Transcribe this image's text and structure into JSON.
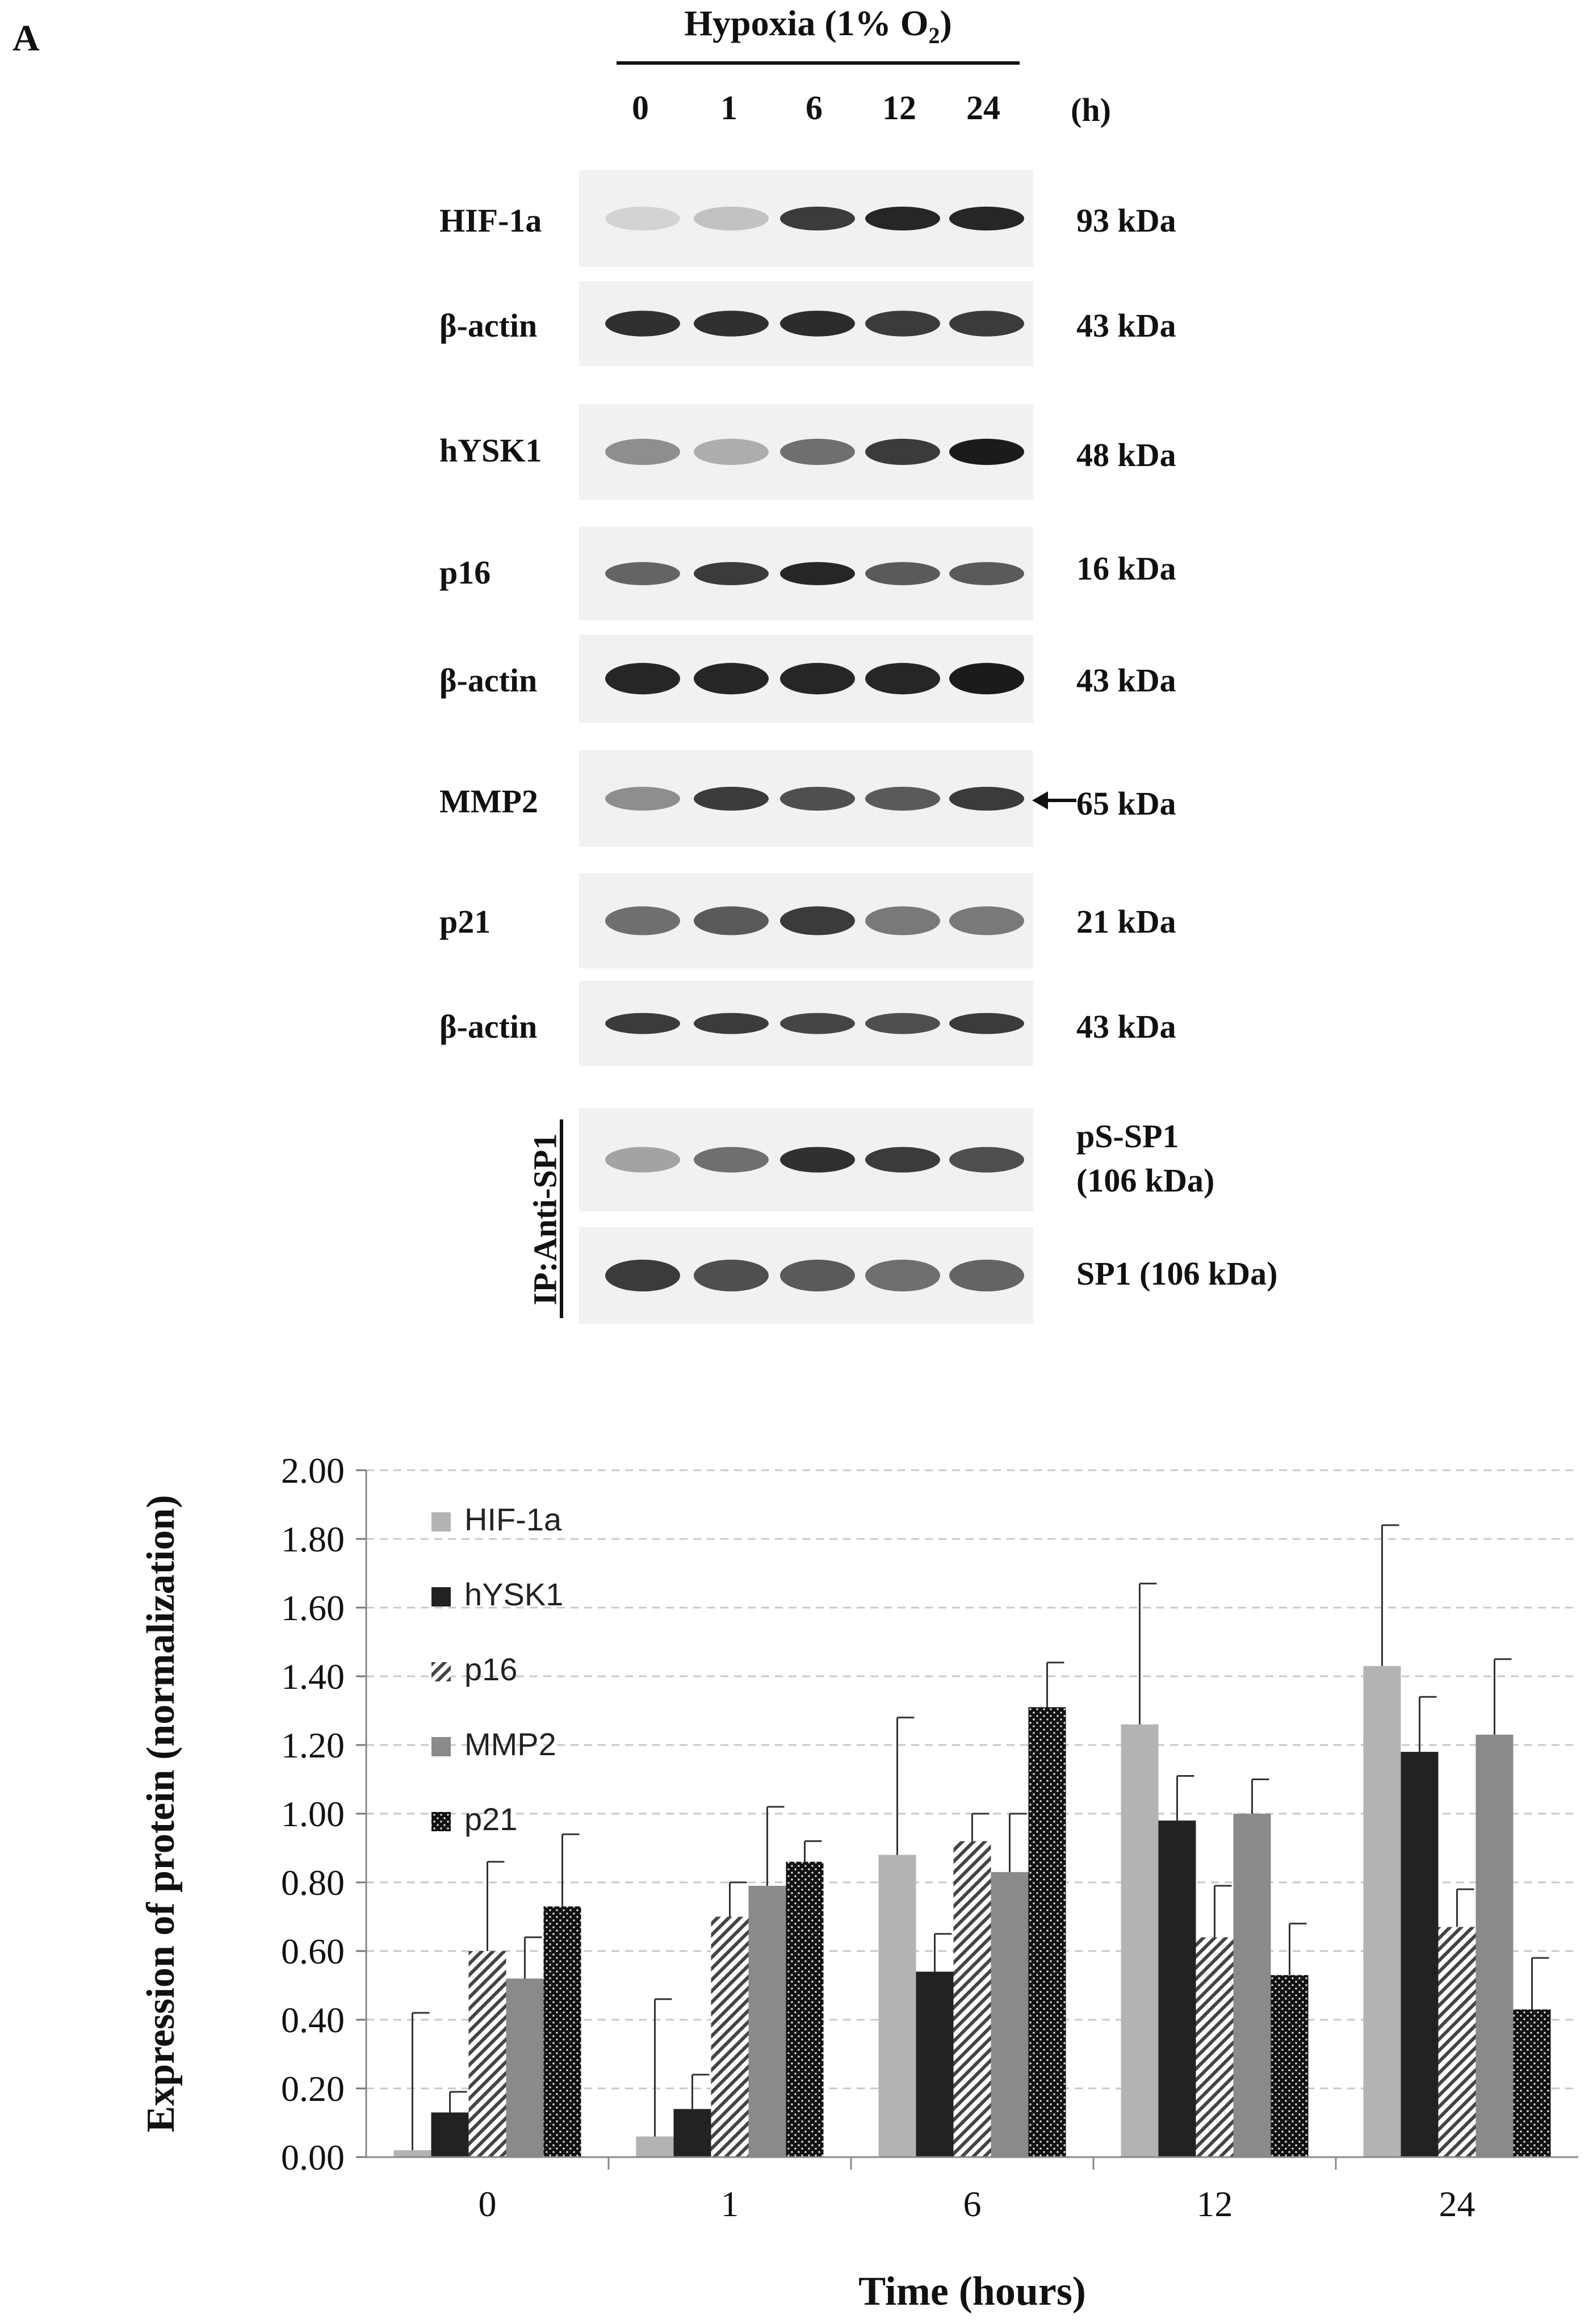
{
  "panel_letter": "A",
  "blot": {
    "condition_label": "Hypoxia (1% O",
    "condition_sub": "2",
    "condition_close": ")",
    "time_unit": "(h)",
    "lanes": [
      "0",
      "1",
      "6",
      "12",
      "24"
    ],
    "rows": [
      {
        "label": "HIF-1a",
        "size": "93 kDa",
        "intensity": [
          0.12,
          0.2,
          0.85,
          0.95,
          0.95
        ],
        "thickness": 0.45
      },
      {
        "label": "β-actin",
        "size": "43 kDa",
        "intensity": [
          0.9,
          0.9,
          0.92,
          0.85,
          0.85
        ],
        "thickness": 0.55
      },
      {
        "label": "hYSK1",
        "size": "48 kDa",
        "intensity": [
          0.45,
          0.3,
          0.6,
          0.85,
          1.0
        ],
        "thickness": 0.5
      },
      {
        "label": "p16",
        "size": "16 kDa",
        "intensity": [
          0.65,
          0.85,
          0.95,
          0.7,
          0.7
        ],
        "thickness": 0.45
      },
      {
        "label": "β-actin",
        "size": "43 kDa",
        "intensity": [
          0.95,
          0.95,
          0.95,
          0.95,
          1.0
        ],
        "thickness": 0.65
      },
      {
        "label": "MMP2",
        "size": "65 kDa",
        "intensity": [
          0.45,
          0.85,
          0.75,
          0.7,
          0.85
        ],
        "thickness": 0.45
      },
      {
        "label": "p21",
        "size": "21 kDa",
        "intensity": [
          0.6,
          0.7,
          0.85,
          0.55,
          0.55
        ],
        "thickness": 0.55
      },
      {
        "label": "β-actin",
        "size": "43 kDa",
        "intensity": [
          0.85,
          0.85,
          0.8,
          0.75,
          0.85
        ],
        "thickness": 0.45
      },
      {
        "label": "",
        "size": "pS-SP1",
        "size_line2": "(106 kDa)",
        "intensity": [
          0.35,
          0.6,
          0.9,
          0.85,
          0.75
        ],
        "thickness": 0.45
      },
      {
        "label": "",
        "size": "SP1 (106 kDa)",
        "intensity": [
          0.85,
          0.75,
          0.7,
          0.6,
          0.65
        ],
        "thickness": 0.6
      }
    ],
    "ip_label": "IP:Anti-SP1"
  },
  "chart_data": {
    "type": "bar",
    "categories": [
      "0",
      "1",
      "6",
      "12",
      "24"
    ],
    "xlabel": "Time (hours)",
    "ylabel": "Expression of protein (normalization)",
    "ylim": [
      0,
      2.0
    ],
    "yticks": [
      "0.00",
      "0.20",
      "0.40",
      "0.60",
      "0.80",
      "1.00",
      "1.20",
      "1.40",
      "1.60",
      "1.80",
      "2.00"
    ],
    "grid": "horizontal dashed",
    "legend_position": "top-left",
    "series": [
      {
        "name": "HIF-1a",
        "values": [
          0.02,
          0.06,
          0.88,
          1.26,
          1.43
        ],
        "errors": [
          0.4,
          0.4,
          0.4,
          0.41,
          0.41
        ],
        "color": "#b3b3b3",
        "pattern": "solid"
      },
      {
        "name": "hYSK1",
        "values": [
          0.13,
          0.14,
          0.54,
          0.98,
          1.18
        ],
        "errors": [
          0.06,
          0.1,
          0.11,
          0.13,
          0.16
        ],
        "color": "#222222",
        "pattern": "solid"
      },
      {
        "name": "p16",
        "values": [
          0.6,
          0.7,
          0.92,
          0.64,
          0.67
        ],
        "errors": [
          0.26,
          0.1,
          0.08,
          0.15,
          0.11
        ],
        "color": "#555555",
        "pattern": "diagonal"
      },
      {
        "name": "MMP2",
        "values": [
          0.52,
          0.79,
          0.83,
          1.0,
          1.23
        ],
        "errors": [
          0.12,
          0.23,
          0.17,
          0.1,
          0.22
        ],
        "color": "#8a8a8a",
        "pattern": "solid"
      },
      {
        "name": "p21",
        "values": [
          0.73,
          0.86,
          1.31,
          0.53,
          0.43
        ],
        "errors": [
          0.21,
          0.06,
          0.13,
          0.15,
          0.15
        ],
        "color": "#111111",
        "pattern": "dotted"
      }
    ]
  }
}
